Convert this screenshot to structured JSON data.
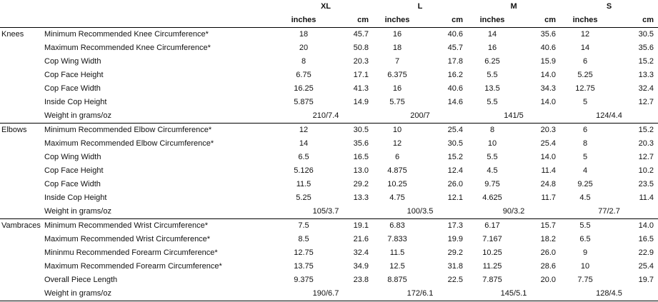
{
  "sizes": [
    "XL",
    "L",
    "M",
    "S"
  ],
  "units": {
    "inches": "inches",
    "cm": "cm"
  },
  "sections": [
    {
      "group": "Knees",
      "rows": [
        {
          "label": "Minimum Recommended Knee Circumference*",
          "values": [
            "18",
            "45.7",
            "16",
            "40.6",
            "14",
            "35.6",
            "12",
            "30.5"
          ]
        },
        {
          "label": "Maximum Recommended Knee Circumference*",
          "values": [
            "20",
            "50.8",
            "18",
            "45.7",
            "16",
            "40.6",
            "14",
            "35.6"
          ]
        },
        {
          "label": "Cop Wing Width",
          "values": [
            "8",
            "20.3",
            "7",
            "17.8",
            "6.25",
            "15.9",
            "6",
            "15.2"
          ]
        },
        {
          "label": "Cop Face Height",
          "values": [
            "6.75",
            "17.1",
            "6.375",
            "16.2",
            "5.5",
            "14.0",
            "5.25",
            "13.3"
          ]
        },
        {
          "label": "Cop Face Width",
          "values": [
            "16.25",
            "41.3",
            "16",
            "40.6",
            "13.5",
            "34.3",
            "12.75",
            "32.4"
          ]
        },
        {
          "label": "Inside Cop Height",
          "values": [
            "5.875",
            "14.9",
            "5.75",
            "14.6",
            "5.5",
            "14.0",
            "5",
            "12.7"
          ]
        }
      ],
      "weight_label": "Weight in grams/oz",
      "weights": [
        "210/7.4",
        "200/7",
        "141/5",
        "124/4.4"
      ]
    },
    {
      "group": "Elbows",
      "rows": [
        {
          "label": "Minimum Recommended Elbow Circumference*",
          "values": [
            "12",
            "30.5",
            "10",
            "25.4",
            "8",
            "20.3",
            "6",
            "15.2"
          ]
        },
        {
          "label": "Maximum Recommended Elbow Circumference*",
          "values": [
            "14",
            "35.6",
            "12",
            "30.5",
            "10",
            "25.4",
            "8",
            "20.3"
          ]
        },
        {
          "label": "Cop Wing Width",
          "values": [
            "6.5",
            "16.5",
            "6",
            "15.2",
            "5.5",
            "14.0",
            "5",
            "12.7"
          ]
        },
        {
          "label": "Cop Face Height",
          "values": [
            "5.126",
            "13.0",
            "4.875",
            "12.4",
            "4.5",
            "11.4",
            "4",
            "10.2"
          ]
        },
        {
          "label": "Cop Face Width",
          "values": [
            "11.5",
            "29.2",
            "10.25",
            "26.0",
            "9.75",
            "24.8",
            "9.25",
            "23.5"
          ]
        },
        {
          "label": "Inside Cop Height",
          "values": [
            "5.25",
            "13.3",
            "4.75",
            "12.1",
            "4.625",
            "11.7",
            "4.5",
            "11.4"
          ]
        }
      ],
      "weight_label": "Weight in grams/oz",
      "weights": [
        "105/3.7",
        "100/3.5",
        "90/3.2",
        "77/2.7"
      ]
    },
    {
      "group": "Vambraces",
      "rows": [
        {
          "label": "Minimum Recommended Wrist Circumference*",
          "values": [
            "7.5",
            "19.1",
            "6.83",
            "17.3",
            "6.17",
            "15.7",
            "5.5",
            "14.0"
          ]
        },
        {
          "label": "Maximum Recommended Wrist Circumference*",
          "values": [
            "8.5",
            "21.6",
            "7.833",
            "19.9",
            "7.167",
            "18.2",
            "6.5",
            "16.5"
          ]
        },
        {
          "label": "Mininmu Recommended Forearm Circumference*",
          "values": [
            "12.75",
            "32.4",
            "11.5",
            "29.2",
            "10.25",
            "26.0",
            "9",
            "22.9"
          ]
        },
        {
          "label": "Maximum Recommended Forearm Circumference*",
          "values": [
            "13.75",
            "34.9",
            "12.5",
            "31.8",
            "11.25",
            "28.6",
            "10",
            "25.4"
          ]
        },
        {
          "label": "Overall Piece Length",
          "values": [
            "9.375",
            "23.8",
            "8.875",
            "22.5",
            "7.875",
            "20.0",
            "7.75",
            "19.7"
          ]
        }
      ],
      "weight_label": "Weight in grams/oz",
      "weights": [
        "190/6.7",
        "172/6.1",
        "145/5.1",
        "128/4.5"
      ]
    }
  ]
}
